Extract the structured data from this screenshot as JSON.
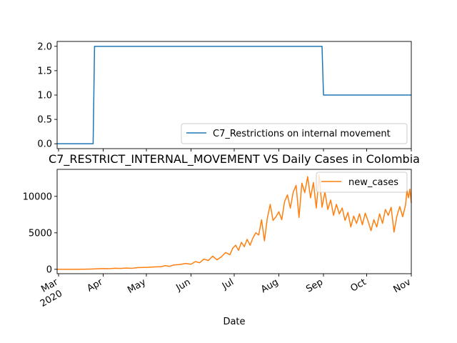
{
  "chart_data": [
    {
      "type": "line",
      "title": "",
      "xlabel": "",
      "ylabel": "",
      "x_range": [
        "2020-02-29",
        "2020-11-01"
      ],
      "ylim": [
        -0.1,
        2.1
      ],
      "yticks": [
        "0.0",
        "0.5",
        "1.0",
        "1.5",
        "2.0"
      ],
      "grid": false,
      "legend": "lower-right",
      "series": [
        {
          "name": "C7_Restrictions on internal movement",
          "color": "#1f77b4",
          "points": [
            [
              "2020-02-29",
              0
            ],
            [
              "2020-03-25",
              0
            ],
            [
              "2020-03-26",
              2
            ],
            [
              "2020-08-31",
              2
            ],
            [
              "2020-09-01",
              1
            ],
            [
              "2020-11-01",
              1
            ]
          ]
        }
      ]
    },
    {
      "type": "line",
      "title": "C7_RESTRICT_INTERNAL_MOVEMENT VS Daily Cases in Colombia",
      "xlabel": "Date",
      "ylabel": "",
      "x_range": [
        "2020-02-29",
        "2020-11-01"
      ],
      "ylim": [
        -600,
        13700
      ],
      "yticks": [
        "0",
        "5000",
        "10000"
      ],
      "xticks": [
        {
          "label": "Mar",
          "sub": "2020",
          "date": "2020-03-01"
        },
        {
          "label": "Apr",
          "date": "2020-04-01"
        },
        {
          "label": "May",
          "date": "2020-05-01"
        },
        {
          "label": "Jun",
          "date": "2020-06-01"
        },
        {
          "label": "Jul",
          "date": "2020-07-01"
        },
        {
          "label": "Aug",
          "date": "2020-08-01"
        },
        {
          "label": "Sep",
          "date": "2020-09-01"
        },
        {
          "label": "Oct",
          "date": "2020-10-01"
        },
        {
          "label": "Nov",
          "date": "2020-11-01"
        }
      ],
      "grid": false,
      "legend": "top-right",
      "series": [
        {
          "name": "new_cases",
          "color": "#ff7f0e",
          "points": [
            [
              "2020-02-29",
              0
            ],
            [
              "2020-03-06",
              1
            ],
            [
              "2020-03-12",
              3
            ],
            [
              "2020-03-18",
              15
            ],
            [
              "2020-03-24",
              40
            ],
            [
              "2020-03-28",
              70
            ],
            [
              "2020-04-01",
              100
            ],
            [
              "2020-04-05",
              80
            ],
            [
              "2020-04-09",
              150
            ],
            [
              "2020-04-13",
              120
            ],
            [
              "2020-04-17",
              170
            ],
            [
              "2020-04-21",
              140
            ],
            [
              "2020-04-25",
              230
            ],
            [
              "2020-04-29",
              260
            ],
            [
              "2020-05-03",
              280
            ],
            [
              "2020-05-07",
              330
            ],
            [
              "2020-05-11",
              350
            ],
            [
              "2020-05-14",
              500
            ],
            [
              "2020-05-17",
              400
            ],
            [
              "2020-05-20",
              600
            ],
            [
              "2020-05-24",
              650
            ],
            [
              "2020-05-28",
              800
            ],
            [
              "2020-06-01",
              700
            ],
            [
              "2020-06-04",
              1050
            ],
            [
              "2020-06-07",
              900
            ],
            [
              "2020-06-10",
              1400
            ],
            [
              "2020-06-13",
              1200
            ],
            [
              "2020-06-16",
              1800
            ],
            [
              "2020-06-19",
              1300
            ],
            [
              "2020-06-22",
              1700
            ],
            [
              "2020-06-25",
              2300
            ],
            [
              "2020-06-28",
              2000
            ],
            [
              "2020-06-30",
              2900
            ],
            [
              "2020-07-02",
              3300
            ],
            [
              "2020-07-04",
              2600
            ],
            [
              "2020-07-06",
              3700
            ],
            [
              "2020-07-08",
              3100
            ],
            [
              "2020-07-10",
              4100
            ],
            [
              "2020-07-12",
              3300
            ],
            [
              "2020-07-14",
              4300
            ],
            [
              "2020-07-16",
              5000
            ],
            [
              "2020-07-18",
              4700
            ],
            [
              "2020-07-20",
              6800
            ],
            [
              "2020-07-22",
              3900
            ],
            [
              "2020-07-24",
              7000
            ],
            [
              "2020-07-26",
              8900
            ],
            [
              "2020-07-28",
              6700
            ],
            [
              "2020-07-30",
              7200
            ],
            [
              "2020-08-01",
              7900
            ],
            [
              "2020-08-03",
              6800
            ],
            [
              "2020-08-05",
              9300
            ],
            [
              "2020-08-07",
              10200
            ],
            [
              "2020-08-09",
              8400
            ],
            [
              "2020-08-11",
              10600
            ],
            [
              "2020-08-13",
              11500
            ],
            [
              "2020-08-15",
              7100
            ],
            [
              "2020-08-17",
              11800
            ],
            [
              "2020-08-19",
              10500
            ],
            [
              "2020-08-21",
              12700
            ],
            [
              "2020-08-23",
              9800
            ],
            [
              "2020-08-25",
              11900
            ],
            [
              "2020-08-27",
              8400
            ],
            [
              "2020-08-29",
              12900
            ],
            [
              "2020-08-31",
              8500
            ],
            [
              "2020-09-02",
              10600
            ],
            [
              "2020-09-04",
              8200
            ],
            [
              "2020-09-06",
              9500
            ],
            [
              "2020-09-08",
              7400
            ],
            [
              "2020-09-10",
              8900
            ],
            [
              "2020-09-12",
              7600
            ],
            [
              "2020-09-14",
              8400
            ],
            [
              "2020-09-16",
              6700
            ],
            [
              "2020-09-18",
              7800
            ],
            [
              "2020-09-20",
              5800
            ],
            [
              "2020-09-22",
              7300
            ],
            [
              "2020-09-24",
              6300
            ],
            [
              "2020-09-26",
              7600
            ],
            [
              "2020-09-28",
              6100
            ],
            [
              "2020-09-30",
              7700
            ],
            [
              "2020-10-02",
              6600
            ],
            [
              "2020-10-04",
              5300
            ],
            [
              "2020-10-06",
              6800
            ],
            [
              "2020-10-08",
              5800
            ],
            [
              "2020-10-10",
              7600
            ],
            [
              "2020-10-12",
              6300
            ],
            [
              "2020-10-14",
              8200
            ],
            [
              "2020-10-16",
              7400
            ],
            [
              "2020-10-18",
              8500
            ],
            [
              "2020-10-20",
              5100
            ],
            [
              "2020-10-22",
              7300
            ],
            [
              "2020-10-24",
              8600
            ],
            [
              "2020-10-26",
              7200
            ],
            [
              "2020-10-28",
              8800
            ],
            [
              "2020-10-29",
              10800
            ],
            [
              "2020-10-30",
              9800
            ],
            [
              "2020-10-31",
              11000
            ],
            [
              "2020-11-01",
              9100
            ]
          ]
        }
      ]
    }
  ]
}
